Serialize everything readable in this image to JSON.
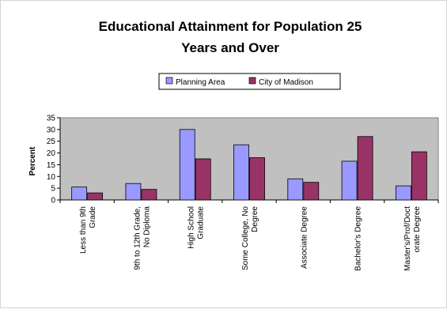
{
  "chart_data": {
    "type": "bar",
    "title_line1": "Educational Attainment for Population 25",
    "title_line2": "Years and Over",
    "ylabel": "Percent",
    "xlabel": "",
    "ylim": [
      0,
      35
    ],
    "yticks": [
      "0",
      "5",
      "10",
      "15",
      "20",
      "25",
      "30",
      "35"
    ],
    "grid": false,
    "legend_position": "top-center",
    "categories": [
      [
        "Less than 9th",
        "Grade"
      ],
      [
        "9th to 12th Grade,",
        "No Diploma"
      ],
      [
        "High School",
        "Graduate"
      ],
      [
        "Some College, No",
        "Degree"
      ],
      [
        "Associate Degree"
      ],
      [
        "Bachelor's Degree"
      ],
      [
        "Master's/Prof/Doct",
        "orate Degree"
      ]
    ],
    "series": [
      {
        "name": "Planning Area",
        "color": "#9999ff",
        "values": [
          5.5,
          7,
          30,
          23.5,
          9,
          16.5,
          6
        ]
      },
      {
        "name": "City of Madison",
        "color": "#993366",
        "values": [
          3,
          4.5,
          17.5,
          18,
          7.5,
          27,
          20.5
        ]
      }
    ],
    "plot_background": "#c0c0c0"
  }
}
